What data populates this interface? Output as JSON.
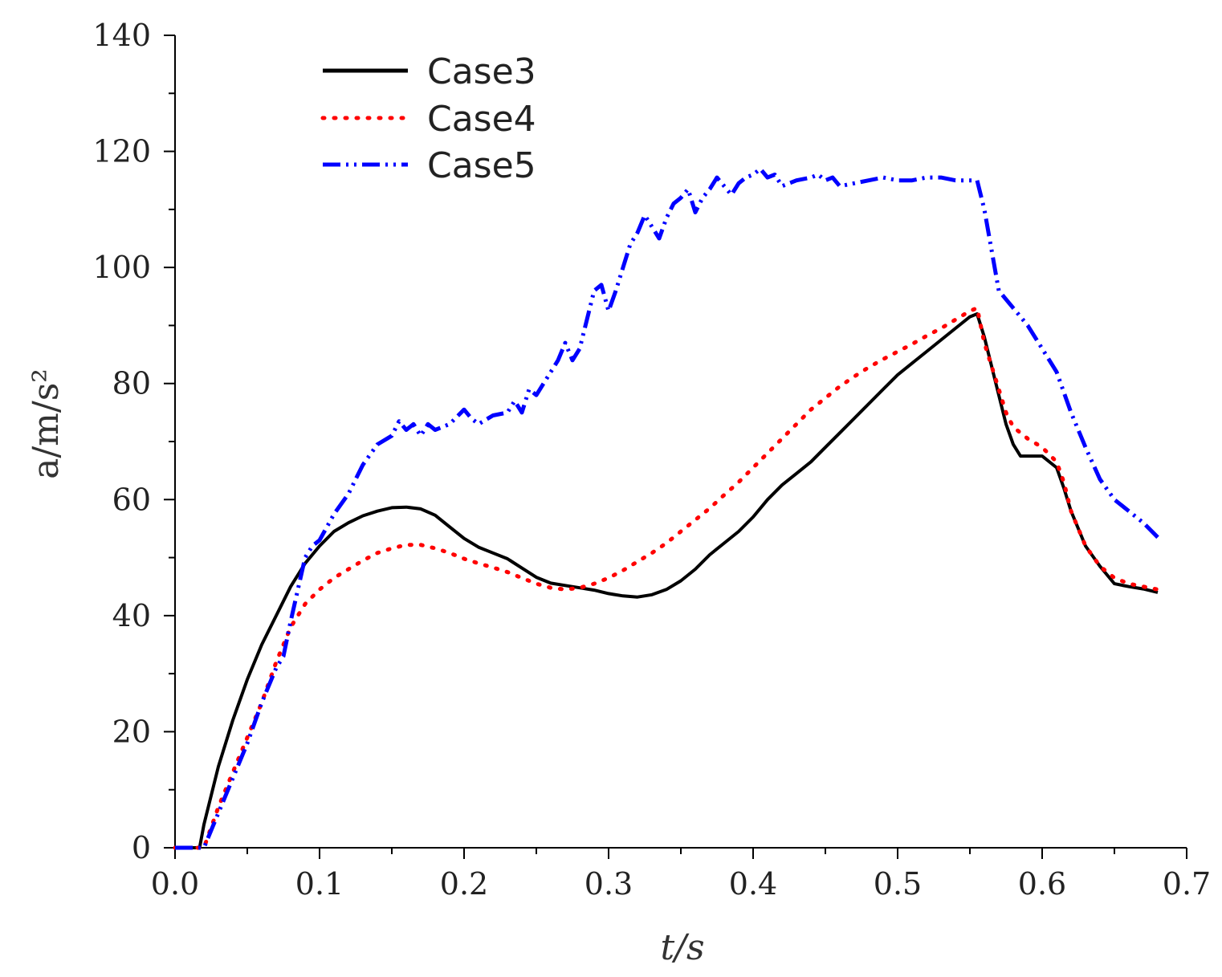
{
  "chart_data": {
    "type": "line",
    "title": "",
    "xlabel": "t/s",
    "ylabel": "a/m/s²",
    "xlim": [
      0.0,
      0.7
    ],
    "ylim": [
      0,
      140
    ],
    "x_ticks": [
      "0.0",
      "0.1",
      "0.2",
      "0.3",
      "0.4",
      "0.5",
      "0.6",
      "0.7"
    ],
    "y_ticks": [
      "0",
      "20",
      "40",
      "60",
      "80",
      "100",
      "120",
      "140"
    ],
    "x_tick_values": [
      0.0,
      0.1,
      0.2,
      0.3,
      0.4,
      0.5,
      0.6,
      0.7
    ],
    "y_tick_values": [
      0,
      20,
      40,
      60,
      80,
      100,
      120,
      140
    ],
    "grid": false,
    "legend_position": "top-left",
    "series": [
      {
        "name": "Case3",
        "color": "#000000",
        "style": "solid",
        "points": [
          [
            0.0,
            0
          ],
          [
            0.017,
            0
          ],
          [
            0.02,
            4
          ],
          [
            0.03,
            14
          ],
          [
            0.04,
            22
          ],
          [
            0.05,
            29
          ],
          [
            0.06,
            35
          ],
          [
            0.07,
            40
          ],
          [
            0.08,
            45
          ],
          [
            0.09,
            49
          ],
          [
            0.1,
            52
          ],
          [
            0.11,
            54.5
          ],
          [
            0.12,
            56
          ],
          [
            0.13,
            57.2
          ],
          [
            0.14,
            58
          ],
          [
            0.15,
            58.6
          ],
          [
            0.16,
            58.7
          ],
          [
            0.17,
            58.4
          ],
          [
            0.18,
            57.3
          ],
          [
            0.19,
            55.3
          ],
          [
            0.2,
            53.3
          ],
          [
            0.21,
            51.8
          ],
          [
            0.22,
            50.8
          ],
          [
            0.23,
            49.8
          ],
          [
            0.24,
            48.2
          ],
          [
            0.25,
            46.6
          ],
          [
            0.26,
            45.6
          ],
          [
            0.27,
            45.2
          ],
          [
            0.28,
            44.8
          ],
          [
            0.29,
            44.4
          ],
          [
            0.3,
            43.8
          ],
          [
            0.31,
            43.4
          ],
          [
            0.32,
            43.2
          ],
          [
            0.33,
            43.6
          ],
          [
            0.34,
            44.5
          ],
          [
            0.35,
            46
          ],
          [
            0.36,
            48
          ],
          [
            0.37,
            50.5
          ],
          [
            0.38,
            52.5
          ],
          [
            0.39,
            54.5
          ],
          [
            0.4,
            57
          ],
          [
            0.41,
            60
          ],
          [
            0.42,
            62.5
          ],
          [
            0.43,
            64.5
          ],
          [
            0.44,
            66.5
          ],
          [
            0.45,
            69
          ],
          [
            0.46,
            71.5
          ],
          [
            0.47,
            74
          ],
          [
            0.48,
            76.5
          ],
          [
            0.49,
            79
          ],
          [
            0.5,
            81.5
          ],
          [
            0.51,
            83.5
          ],
          [
            0.52,
            85.5
          ],
          [
            0.53,
            87.5
          ],
          [
            0.54,
            89.5
          ],
          [
            0.55,
            91.5
          ],
          [
            0.555,
            92
          ],
          [
            0.56,
            88
          ],
          [
            0.57,
            78
          ],
          [
            0.575,
            73
          ],
          [
            0.58,
            69.5
          ],
          [
            0.585,
            67.5
          ],
          [
            0.59,
            67.5
          ],
          [
            0.6,
            67.5
          ],
          [
            0.61,
            65.5
          ],
          [
            0.615,
            62
          ],
          [
            0.62,
            58
          ],
          [
            0.63,
            52
          ],
          [
            0.64,
            48.5
          ],
          [
            0.65,
            45.5
          ],
          [
            0.66,
            45
          ],
          [
            0.67,
            44.6
          ],
          [
            0.68,
            44
          ]
        ]
      },
      {
        "name": "Case4",
        "color": "#ff0000",
        "style": "dotted",
        "points": [
          [
            0.0,
            0
          ],
          [
            0.02,
            0
          ],
          [
            0.03,
            7
          ],
          [
            0.04,
            13
          ],
          [
            0.05,
            19
          ],
          [
            0.06,
            25
          ],
          [
            0.07,
            32
          ],
          [
            0.08,
            38
          ],
          [
            0.09,
            42
          ],
          [
            0.1,
            44.5
          ],
          [
            0.11,
            46.5
          ],
          [
            0.12,
            48
          ],
          [
            0.13,
            49.5
          ],
          [
            0.14,
            50.8
          ],
          [
            0.15,
            51.6
          ],
          [
            0.16,
            52.2
          ],
          [
            0.17,
            52.2
          ],
          [
            0.18,
            51.6
          ],
          [
            0.19,
            50.8
          ],
          [
            0.2,
            49.8
          ],
          [
            0.21,
            49
          ],
          [
            0.22,
            48.3
          ],
          [
            0.23,
            47.5
          ],
          [
            0.24,
            46.5
          ],
          [
            0.25,
            45.5
          ],
          [
            0.26,
            44.8
          ],
          [
            0.27,
            44.5
          ],
          [
            0.28,
            44.8
          ],
          [
            0.29,
            45.5
          ],
          [
            0.3,
            46.5
          ],
          [
            0.31,
            47.8
          ],
          [
            0.32,
            49.3
          ],
          [
            0.33,
            50.8
          ],
          [
            0.34,
            52.5
          ],
          [
            0.35,
            54.5
          ],
          [
            0.36,
            56.5
          ],
          [
            0.37,
            58.5
          ],
          [
            0.38,
            60.8
          ],
          [
            0.39,
            63
          ],
          [
            0.4,
            65.5
          ],
          [
            0.41,
            68
          ],
          [
            0.42,
            70.5
          ],
          [
            0.43,
            73
          ],
          [
            0.44,
            75.5
          ],
          [
            0.45,
            77.5
          ],
          [
            0.46,
            79.5
          ],
          [
            0.47,
            81.2
          ],
          [
            0.48,
            82.8
          ],
          [
            0.49,
            84.2
          ],
          [
            0.5,
            85.5
          ],
          [
            0.51,
            86.8
          ],
          [
            0.52,
            88.2
          ],
          [
            0.53,
            89.5
          ],
          [
            0.54,
            91
          ],
          [
            0.55,
            92.5
          ],
          [
            0.555,
            93
          ],
          [
            0.56,
            87
          ],
          [
            0.57,
            79
          ],
          [
            0.575,
            75
          ],
          [
            0.58,
            72.5
          ],
          [
            0.59,
            70.5
          ],
          [
            0.6,
            69
          ],
          [
            0.61,
            66.5
          ],
          [
            0.615,
            63
          ],
          [
            0.62,
            58
          ],
          [
            0.63,
            52
          ],
          [
            0.64,
            48.5
          ],
          [
            0.65,
            46.5
          ],
          [
            0.66,
            45.5
          ],
          [
            0.67,
            45
          ],
          [
            0.68,
            44.5
          ]
        ]
      },
      {
        "name": "Case5",
        "color": "#0000ff",
        "style": "dashdot",
        "points": [
          [
            0.0,
            0
          ],
          [
            0.02,
            0
          ],
          [
            0.03,
            6
          ],
          [
            0.04,
            12
          ],
          [
            0.05,
            18
          ],
          [
            0.06,
            25
          ],
          [
            0.07,
            31
          ],
          [
            0.075,
            33
          ],
          [
            0.08,
            39
          ],
          [
            0.09,
            50
          ],
          [
            0.095,
            52
          ],
          [
            0.1,
            53
          ],
          [
            0.11,
            57.5
          ],
          [
            0.12,
            61
          ],
          [
            0.13,
            66
          ],
          [
            0.14,
            69.5
          ],
          [
            0.15,
            71
          ],
          [
            0.155,
            73.5
          ],
          [
            0.16,
            72
          ],
          [
            0.165,
            73
          ],
          [
            0.17,
            71
          ],
          [
            0.175,
            73
          ],
          [
            0.18,
            72
          ],
          [
            0.19,
            73
          ],
          [
            0.2,
            75.5
          ],
          [
            0.205,
            74
          ],
          [
            0.21,
            73
          ],
          [
            0.22,
            74.5
          ],
          [
            0.23,
            75
          ],
          [
            0.235,
            77
          ],
          [
            0.24,
            75
          ],
          [
            0.245,
            79
          ],
          [
            0.25,
            78
          ],
          [
            0.255,
            80
          ],
          [
            0.26,
            82
          ],
          [
            0.265,
            84
          ],
          [
            0.27,
            87
          ],
          [
            0.275,
            84
          ],
          [
            0.28,
            86
          ],
          [
            0.29,
            96
          ],
          [
            0.295,
            97
          ],
          [
            0.3,
            92.5
          ],
          [
            0.305,
            96
          ],
          [
            0.31,
            100
          ],
          [
            0.315,
            104
          ],
          [
            0.32,
            106
          ],
          [
            0.325,
            109
          ],
          [
            0.33,
            107
          ],
          [
            0.335,
            105
          ],
          [
            0.34,
            108.5
          ],
          [
            0.345,
            111
          ],
          [
            0.35,
            112
          ],
          [
            0.355,
            113.5
          ],
          [
            0.36,
            109.5
          ],
          [
            0.365,
            112
          ],
          [
            0.37,
            113.5
          ],
          [
            0.375,
            115.5
          ],
          [
            0.38,
            114
          ],
          [
            0.385,
            112.5
          ],
          [
            0.39,
            114.5
          ],
          [
            0.395,
            115.5
          ],
          [
            0.4,
            116
          ],
          [
            0.405,
            117
          ],
          [
            0.41,
            115.5
          ],
          [
            0.415,
            116
          ],
          [
            0.42,
            114
          ],
          [
            0.43,
            115
          ],
          [
            0.44,
            115.5
          ],
          [
            0.445,
            116
          ],
          [
            0.45,
            115
          ],
          [
            0.455,
            115.5
          ],
          [
            0.46,
            114
          ],
          [
            0.47,
            114.5
          ],
          [
            0.48,
            115
          ],
          [
            0.49,
            115.5
          ],
          [
            0.5,
            115
          ],
          [
            0.51,
            115
          ],
          [
            0.52,
            115.5
          ],
          [
            0.53,
            115.5
          ],
          [
            0.54,
            115
          ],
          [
            0.55,
            115
          ],
          [
            0.555,
            115
          ],
          [
            0.56,
            110
          ],
          [
            0.565,
            103
          ],
          [
            0.57,
            96
          ],
          [
            0.58,
            93
          ],
          [
            0.59,
            90
          ],
          [
            0.6,
            86
          ],
          [
            0.61,
            82
          ],
          [
            0.62,
            75
          ],
          [
            0.63,
            69
          ],
          [
            0.64,
            63.5
          ],
          [
            0.65,
            60
          ],
          [
            0.66,
            58
          ],
          [
            0.67,
            56
          ],
          [
            0.68,
            53.5
          ]
        ]
      }
    ]
  }
}
